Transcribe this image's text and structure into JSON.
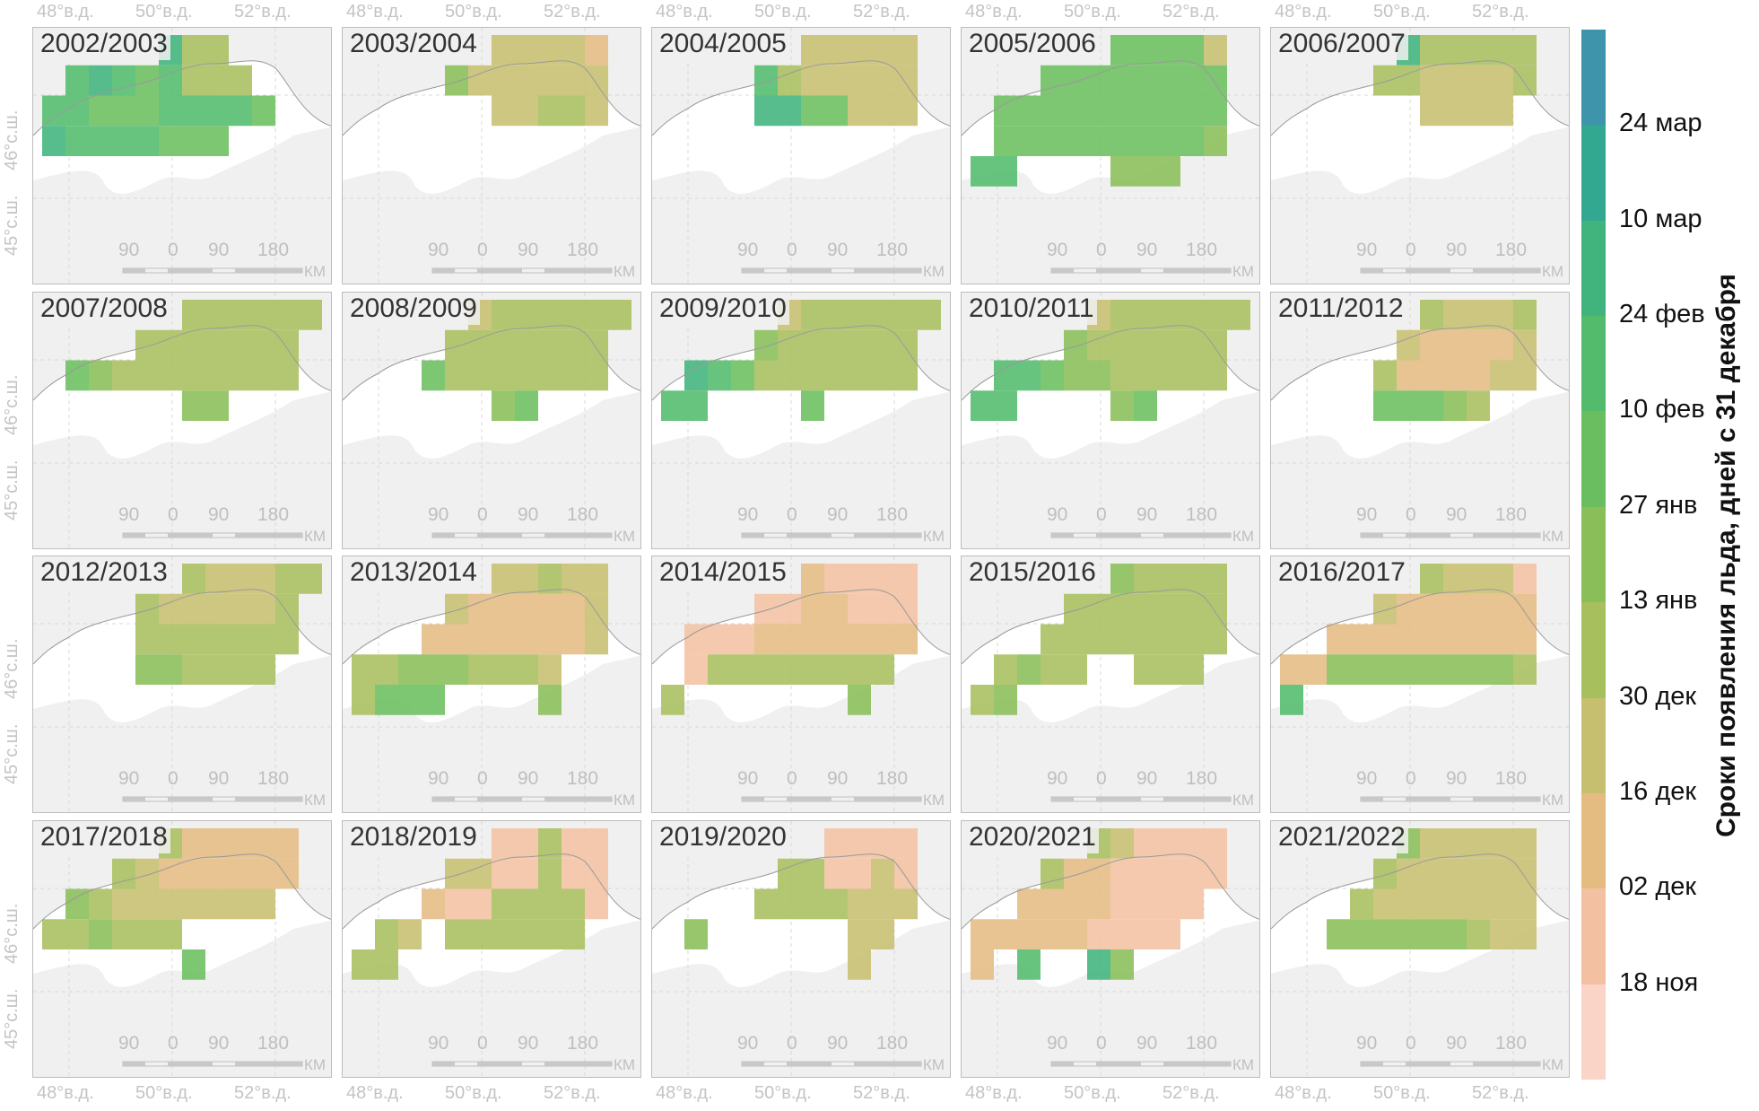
{
  "legend": {
    "title": "Сроки появления льда, дней с 31 декабря",
    "labels": [
      "24 мар",
      "10 мар",
      "24 фев",
      "10 фев",
      "27 янв",
      "13 янв",
      "30 дек",
      "16 дек",
      "02 дек",
      "18 ноя"
    ],
    "colors": [
      "#3d94ab",
      "#33a890",
      "#40b47c",
      "#52bc6c",
      "#6bbe5f",
      "#89be59",
      "#a8bf5e",
      "#c7bf70",
      "#e4bc82",
      "#f3c1a2",
      "#fbd4c8"
    ]
  },
  "axes": {
    "lon_labels": [
      "48°в.д.",
      "50°в.д.",
      "52°в.д."
    ],
    "lat_labels": [
      "46°с.ш.",
      "45°с.ш."
    ]
  },
  "scalebar": {
    "ticks": [
      "90",
      "0",
      "90",
      "180"
    ],
    "unit": "КМ"
  },
  "panels": [
    {
      "season": "2002/2003",
      "cells": "..........................................55.........................................FFF.......6655555.....................6655555.................................67766675566.........................666667777555.......................66666777.........................................................................................................................................................................................................................."
    },
    {
      "season": "2003/2004",
      "cells": "................................................................................................................................................3333323..........................3333333...........................3333333.......................333......................................................................................................................................................................................................................................................................................................................................................................................................................"
    },
    {
      "season": "2004/2005",
      "cells": "...................................................................................................................................................................................................................................................................................................................................................................................................................................................................................................................................................................................................................................................................................................."
    },
    {
      "season": "2005/2006",
      "cells": "......................................................................................................................................................................................................................................................................................................................................................................................................................................................................................................................................................................................................................................................................................................."
    },
    {
      "season": "2006/2007",
      "cells": "..............................................................................................................................................................................................................................................................................................................................................................................................................................................................................................................................................................................................................................................................................................................."
    },
    {
      "season": "2007/2008",
      "cells": "..............................................................................................................................................................................................................................................................................................................................................................................................................................................................................................................................................................................................................................................................................................................."
    },
    {
      "season": "2008/2009",
      "cells": "..............................................................................................................................................................................................................................................................................................................................................................................................................................................................................................................................................................................................................................................................................................................."
    },
    {
      "season": "2009/2010",
      "cells": "..............................................................................................................................................................................................................................................................................................................................................................................................................................................................................................................................................................................................................................................................................................................."
    },
    {
      "season": "2010/2011",
      "cells": "..............................................................................................................................................................................................................................................................................................................................................................................................................................................................................................................................................................................................................................................................................................................."
    },
    {
      "season": "2011/2012",
      "cells": "..............................................................................................................................................................................................................................................................................................................................................................................................................................................................................................................................................................................................................................................................................................................."
    },
    {
      "season": "2012/2013",
      "cells": "..............................................................................................................................................................................................................................................................................................................................................................................................................................................................................................................................................................................................................................................................................................................."
    },
    {
      "season": "2013/2014",
      "cells": "..............................................................................................................................................................................................................................................................................................................................................................................................................................................................................................................................................................................................................................................................................................................."
    },
    {
      "season": "2014/2015",
      "cells": "..............................................................................................................................................................................................................................................................................................................................................................................................................................................................................................................................................................................................................................................................................................................."
    },
    {
      "season": "2015/2016",
      "cells": "..............................................................................................................................................................................................................................................................................................................................................................................................................................................................................................................................................................................................................................................................................................................."
    },
    {
      "season": "2016/2017",
      "cells": "..............................................................................................................................................................................................................................................................................................................................................................................................................................................................................................................................................................................................................................................................................................................."
    },
    {
      "season": "2017/2018",
      "cells": "..............................................................................................................................................................................................................................................................................................................................................................................................................................................................................................................................................................................................................................................................................................................."
    },
    {
      "season": "2018/2019",
      "cells": "..............................................................................................................................................................................................................................................................................................................................................................................................................................................................................................................................................................................................................................................................................................................."
    },
    {
      "season": "2019/2020",
      "cells": "..............................................................................................................................................................................................................................................................................................................................................................................................................................................................................................................................................................................................................................................................................................................."
    },
    {
      "season": "2020/2021",
      "cells": "..............................................................................................................................................................................................................................................................................................................................................................................................................................................................................................................................................................................................................................................................................................................."
    },
    {
      "season": "2021/2022",
      "cells": "..............................................................................................................................................................................................................................................................................................................................................................................................................................................................................................................................................................................................................................................................................................................."
    }
  ]
}
